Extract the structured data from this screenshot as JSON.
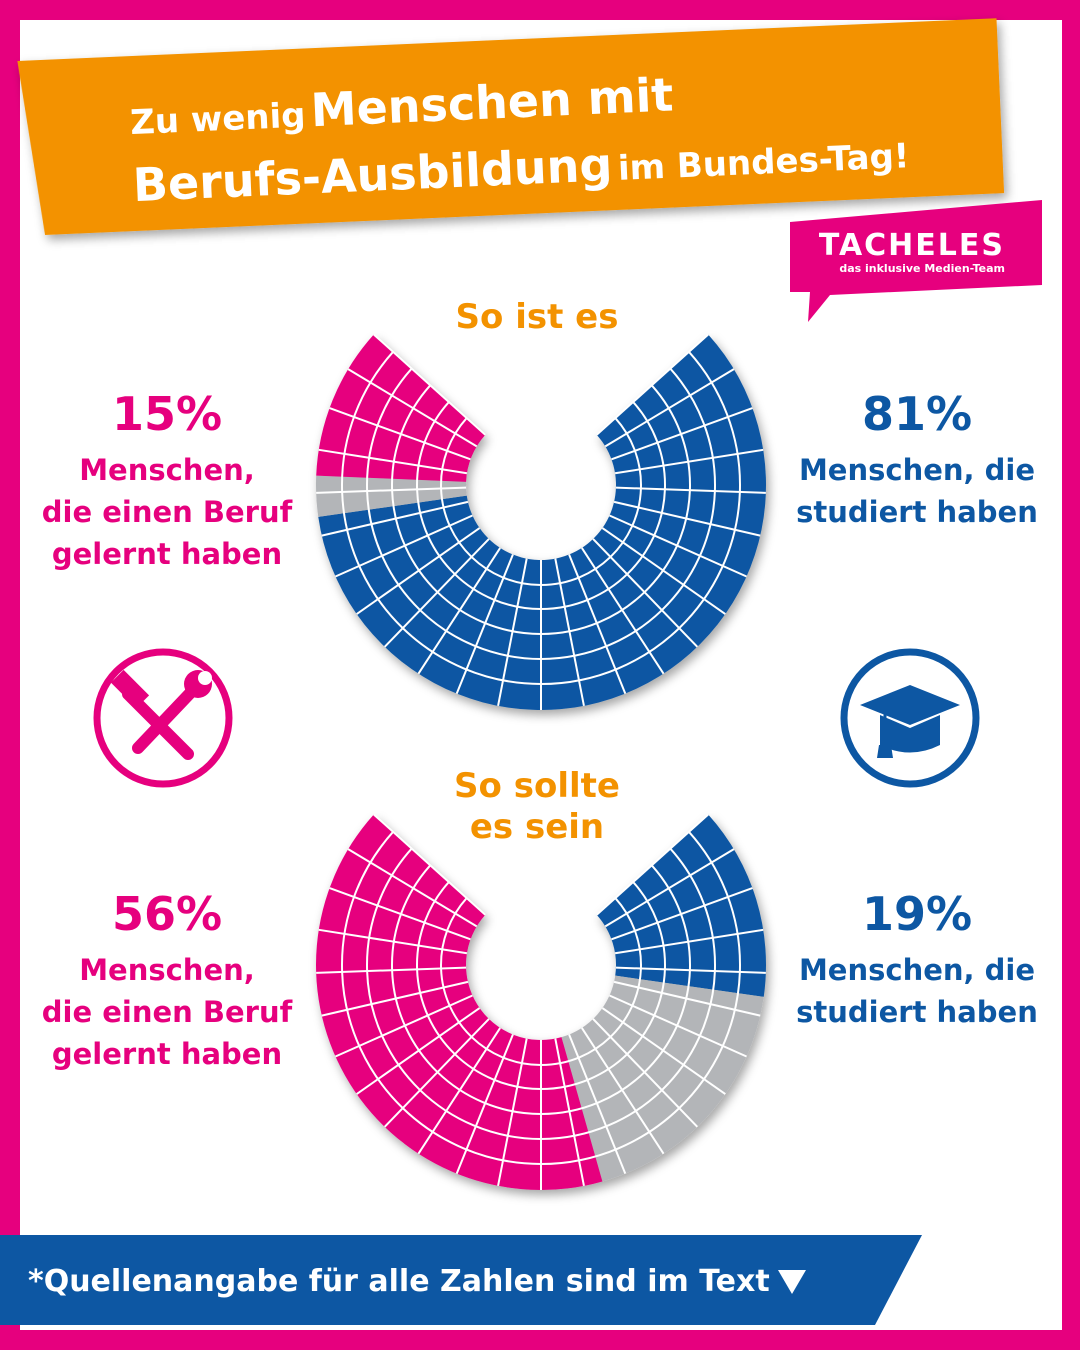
{
  "header": {
    "title": [
      "Zu wenig",
      "Menschen mit",
      "Berufs-Ausbildung",
      "im Bundes-Tag!"
    ],
    "logo": {
      "name": "TACHELES",
      "tagline": "das inklusive Medien-Team"
    }
  },
  "chart_data": [
    {
      "type": "pie",
      "title": "So ist es",
      "categories": [
        "Menschen, die\nstudiert haben",
        null,
        "Menschen,\ndie einen Beruf\ngelernt haben"
      ],
      "values": [
        81,
        4,
        15
      ],
      "value_labels": [
        "81%",
        null,
        "15%"
      ],
      "colors": [
        "#0d57a3",
        "#b3b5b8",
        "#e6007e"
      ]
    },
    {
      "type": "pie",
      "title": "So sollte\nes sein",
      "categories": [
        "Menschen, die\nstudiert haben",
        null,
        "Menschen,\ndie einen Beruf\ngelernt haben"
      ],
      "values": [
        19,
        25,
        56
      ],
      "value_labels": [
        "19%",
        null,
        "56%"
      ],
      "colors": [
        "#0d57a3",
        "#b3b5b8",
        "#e6007e"
      ]
    }
  ],
  "footer": "*Quellenangabe für alle Zahlen sind im Text"
}
